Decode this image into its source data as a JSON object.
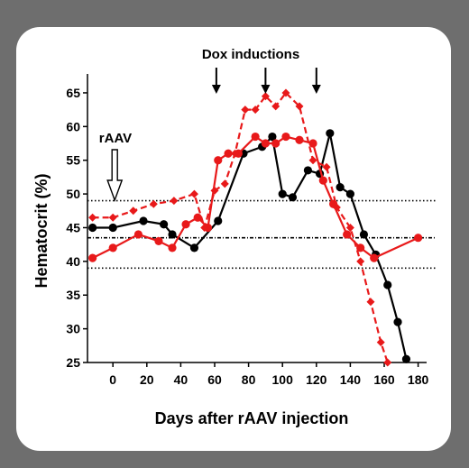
{
  "chart_data": {
    "type": "line",
    "xlabel": "Days after rAAV injection",
    "ylabel": "Hematocrit (%)",
    "xlim": [
      -15,
      185
    ],
    "ylim": [
      25,
      67
    ],
    "xticks": [
      0,
      20,
      40,
      60,
      80,
      100,
      120,
      140,
      160,
      180
    ],
    "yticks": [
      25,
      30,
      35,
      40,
      45,
      50,
      55,
      60,
      65
    ],
    "reference_lines": [
      49,
      43.5,
      39
    ],
    "annotations": {
      "dox_label": "Dox inductions",
      "dox_days": [
        61,
        90,
        120
      ],
      "raav_label": "rAAV",
      "raav_day": 0
    },
    "series": [
      {
        "color": "#000000",
        "marker": "circle",
        "dash": "solid",
        "x": [
          -12,
          0,
          18,
          30,
          35,
          48,
          62,
          77,
          88,
          94,
          100,
          106,
          115,
          122,
          128,
          134,
          140,
          148,
          155,
          162,
          168,
          173
        ],
        "y": [
          45,
          45,
          46,
          45.5,
          44,
          42,
          46,
          56,
          57,
          58.5,
          50,
          49.5,
          53.5,
          53,
          59,
          51,
          50,
          44,
          41,
          36.5,
          31,
          25.5
        ]
      },
      {
        "color": "#e8191a",
        "marker": "circle",
        "dash": "solid",
        "x": [
          -12,
          0,
          15,
          27,
          35,
          43,
          50,
          56,
          62,
          68,
          74,
          84,
          90,
          96,
          102,
          110,
          118,
          124,
          130,
          138,
          146,
          154,
          180
        ],
        "y": [
          40.5,
          42,
          44,
          43,
          42,
          45.5,
          46.5,
          45,
          55,
          56,
          56,
          58.5,
          57.5,
          57.5,
          58.5,
          58,
          57.5,
          52,
          48.5,
          44,
          42,
          40.5,
          43.5
        ]
      },
      {
        "color": "#e8191a",
        "marker": "diamond",
        "dash": "dashed",
        "x": [
          -12,
          0,
          12,
          24,
          36,
          48,
          54,
          60,
          66,
          72,
          78,
          84,
          90,
          96,
          102,
          110,
          118,
          126,
          132,
          140,
          146,
          152,
          158,
          162
        ],
        "y": [
          46.5,
          46.5,
          47.5,
          48.5,
          49,
          50,
          45,
          50.5,
          51.5,
          56,
          62.5,
          62.5,
          64.5,
          63,
          65,
          63,
          55,
          54,
          48,
          45,
          40,
          34,
          28,
          25
        ]
      }
    ]
  }
}
